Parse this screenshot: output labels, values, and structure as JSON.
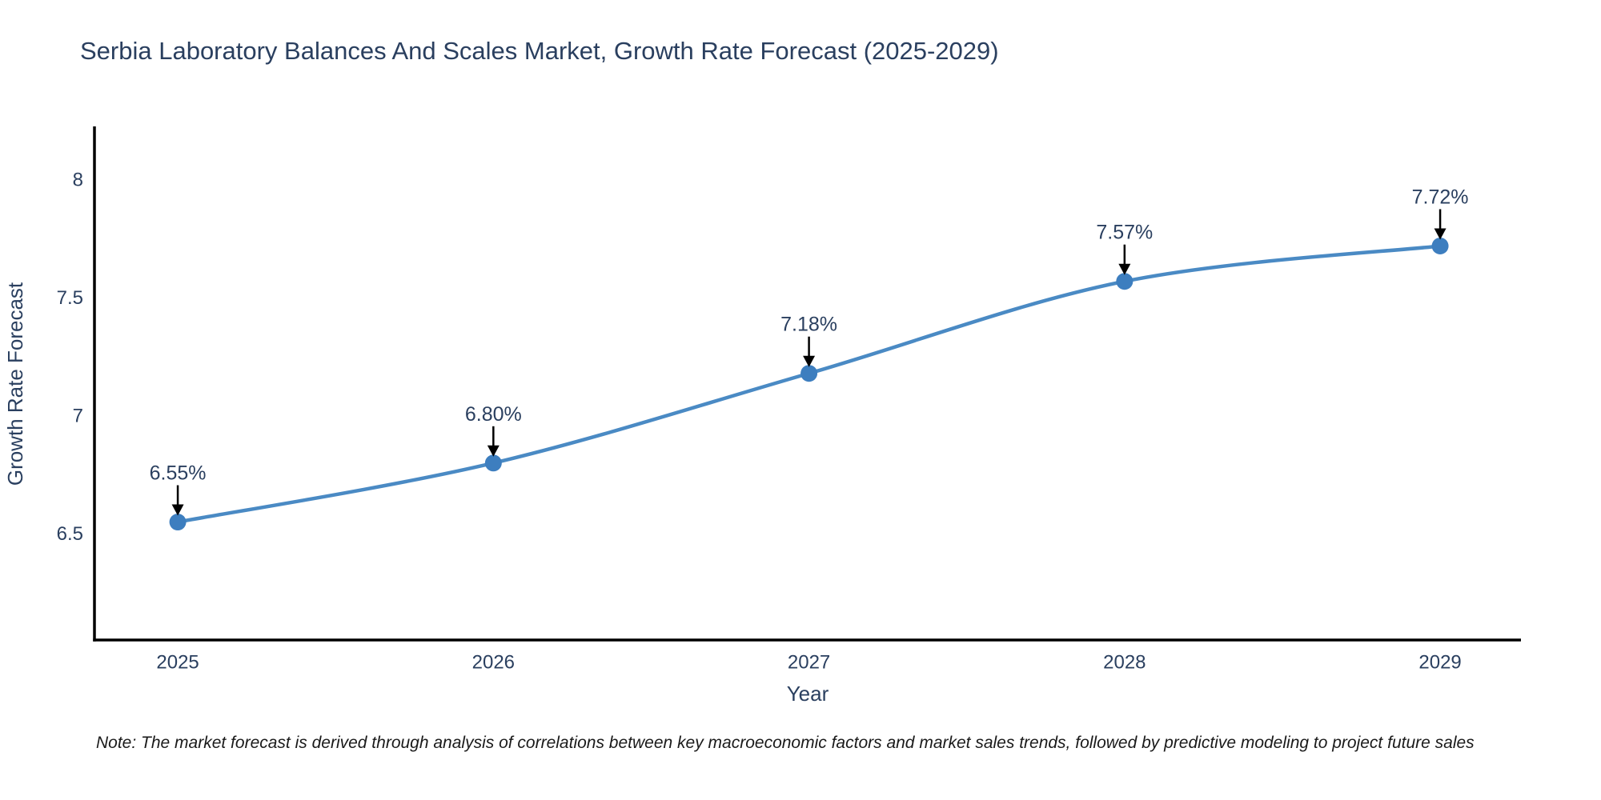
{
  "title": "Serbia Laboratory Balances And Scales Market, Growth Rate Forecast (2025-2029)",
  "note": "Note: The market forecast is derived through analysis of correlations between key macroeconomic factors and market sales trends, followed by predictive modeling to project future sales",
  "chart_data": {
    "type": "line",
    "title": "Serbia Laboratory Balances And Scales Market, Growth Rate Forecast (2025-2029)",
    "x": [
      2025,
      2026,
      2027,
      2028,
      2029
    ],
    "values": [
      6.55,
      6.8,
      7.18,
      7.57,
      7.72
    ],
    "point_labels": [
      "6.55%",
      "6.80%",
      "7.18%",
      "7.57%",
      "7.72%"
    ],
    "xlabel": "Year",
    "ylabel": "Growth Rate Forecast",
    "xticks": [
      "2025",
      "2026",
      "2027",
      "2028",
      "2029"
    ],
    "yticks": [
      6.5,
      7,
      7.5,
      8
    ],
    "ytick_labels": [
      "6.5",
      "7",
      "7.5",
      "8"
    ],
    "xlim": [
      2024.736,
      2029.256
    ],
    "ylim": [
      6.05,
      8.22
    ],
    "grid": false,
    "legend": "none",
    "line_shape": "spline",
    "line_color": "#4a8ac4",
    "marker_color": "#3d7ebf",
    "axis_color": "#000000",
    "annotation_arrow_color": "#000000",
    "label_color": "#2a3f5f",
    "background_color": "#ffffff"
  }
}
